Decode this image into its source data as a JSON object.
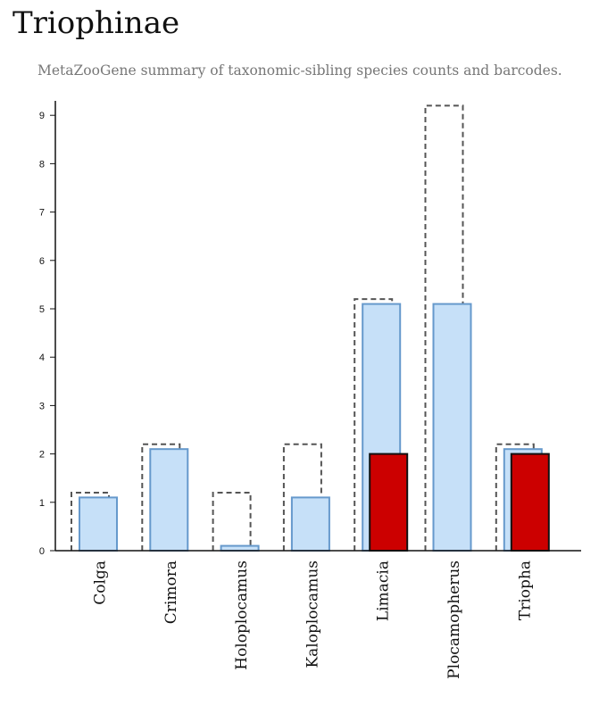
{
  "header": {
    "title": "Triophinae",
    "subtitle": "MetaZooGene summary of taxonomic-sibling species counts and barcodes."
  },
  "colors": {
    "outline_dashed": "#555555",
    "blue_fill": "#c6e0f8",
    "blue_stroke": "#6699cc",
    "red_fill": "#cc0000",
    "red_stroke": "#111111",
    "axis": "#111111"
  },
  "chart_data": {
    "type": "bar",
    "title": "",
    "xlabel": "",
    "ylabel": "",
    "ylim": [
      0,
      9.3
    ],
    "yticks": [
      0,
      1,
      2,
      3,
      4,
      5,
      6,
      7,
      8,
      9
    ],
    "grid": false,
    "legend": "none",
    "categories": [
      "Colga",
      "Crimora",
      "Holoplocamus",
      "Kaloplocamus",
      "Limacia",
      "Plocamopherus",
      "Triopha"
    ],
    "series": [
      {
        "style": "dashed-outline",
        "values": [
          1.2,
          2.2,
          1.2,
          2.2,
          5.2,
          9.2,
          2.2
        ]
      },
      {
        "style": "blue",
        "values": [
          1.1,
          2.1,
          0.1,
          1.1,
          5.1,
          5.1,
          2.1
        ]
      },
      {
        "style": "red",
        "values": [
          0,
          0,
          0,
          0,
          2,
          0,
          2
        ]
      }
    ]
  }
}
